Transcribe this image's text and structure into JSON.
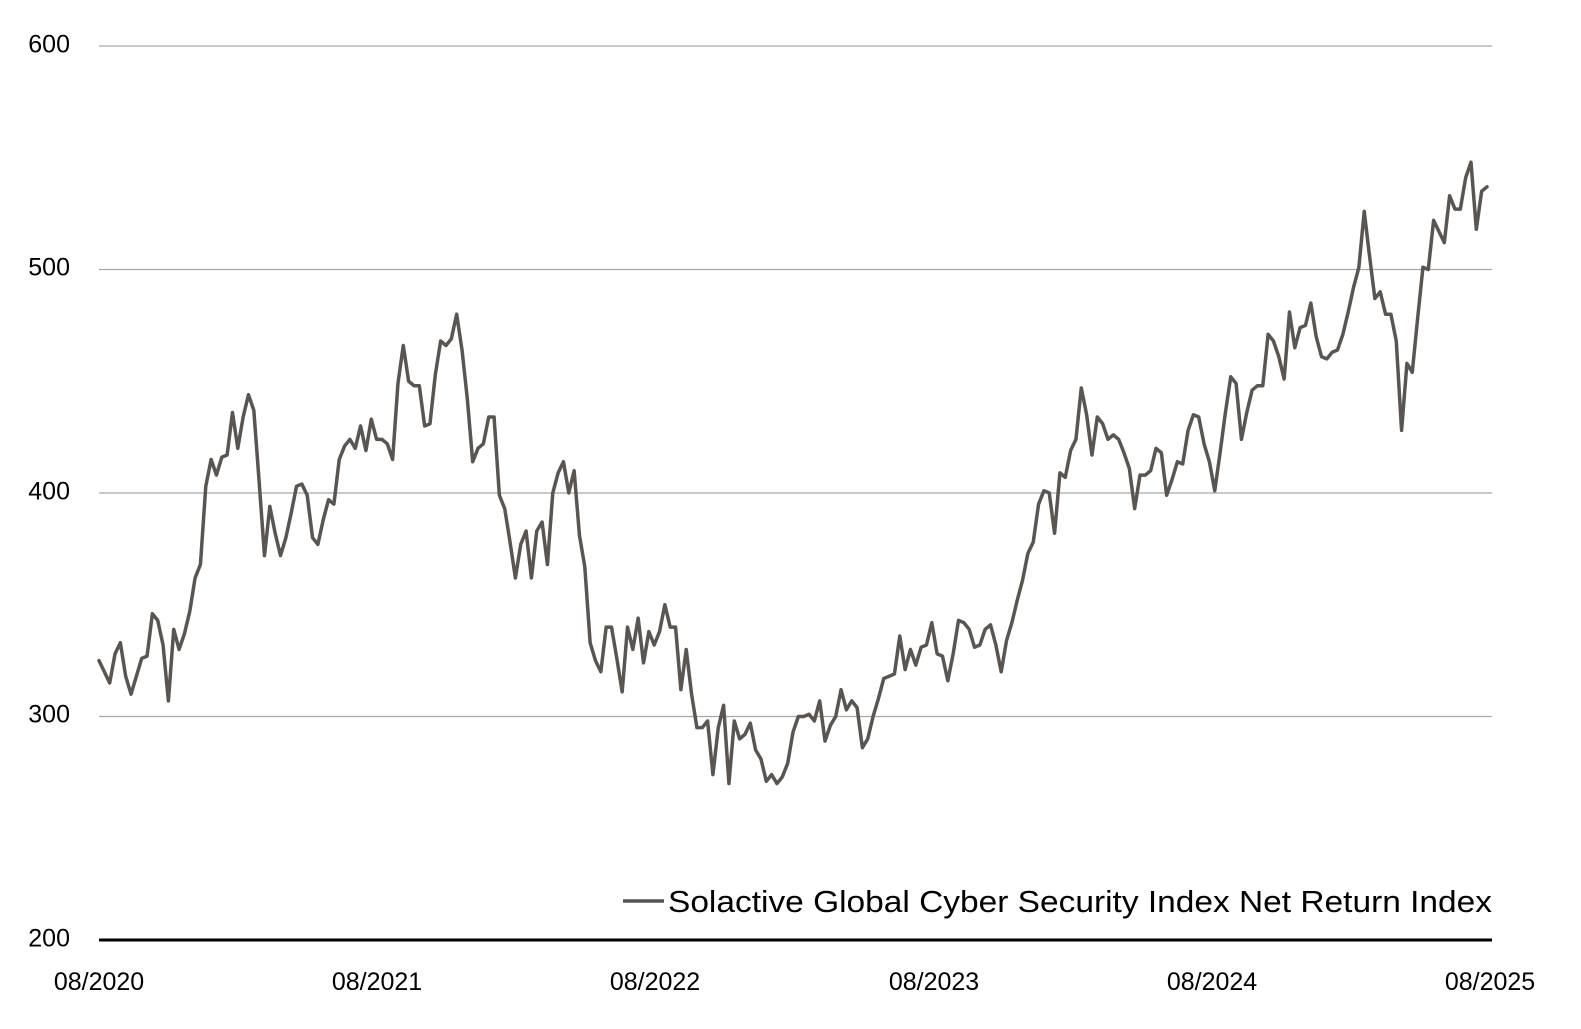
{
  "chart_data": {
    "type": "line",
    "title": "",
    "xlabel": "",
    "ylabel": "",
    "ylim": [
      200,
      600
    ],
    "y_ticks": [
      "600",
      "500",
      "400",
      "300",
      "200"
    ],
    "x_ticks": [
      "08/2020",
      "08/2021",
      "08/2022",
      "08/2023",
      "08/2024",
      "08/2025"
    ],
    "grid": "horizontal",
    "legend_position": "bottom-right",
    "x_start": "08/2020",
    "x_end": "08/2025",
    "series": [
      {
        "name": "Solactive Global Cyber Security Index Net Return Index",
        "color": "#5a5550",
        "values": [
          325,
          320,
          315,
          328,
          333,
          318,
          310,
          318,
          326,
          327,
          346,
          343,
          332,
          307,
          339,
          330,
          337,
          347,
          362,
          368,
          403,
          415,
          408,
          416,
          417,
          436,
          420,
          434,
          444,
          437,
          405,
          372,
          394,
          382,
          372,
          380,
          391,
          403,
          404,
          399,
          380,
          377,
          388,
          397,
          395,
          415,
          421,
          424,
          420,
          430,
          419,
          433,
          424,
          424,
          422,
          415,
          449,
          466,
          450,
          448,
          448,
          430,
          431,
          453,
          468,
          466,
          469,
          480,
          464,
          442,
          414,
          420,
          422,
          434,
          434,
          399,
          393,
          378,
          362,
          377,
          383,
          362,
          383,
          387,
          368,
          400,
          409,
          414,
          400,
          410,
          381,
          367,
          333,
          325,
          320,
          340,
          340,
          326,
          311,
          340,
          330,
          344,
          324,
          338,
          332,
          338,
          350,
          340,
          340,
          312,
          330,
          310,
          295,
          295,
          298,
          274,
          295,
          305,
          270,
          298,
          290,
          292,
          297,
          285,
          281,
          271,
          274,
          270,
          273,
          279,
          293,
          300,
          300,
          301,
          298,
          307,
          289,
          296,
          300,
          312,
          303,
          307,
          304,
          286,
          290,
          300,
          308,
          317,
          318,
          319,
          336,
          321,
          330,
          323,
          331,
          332,
          342,
          328,
          327,
          316,
          328,
          343,
          342,
          339,
          331,
          332,
          339,
          341,
          332,
          320,
          334,
          342,
          352,
          361,
          373,
          378,
          395,
          401,
          400,
          382,
          409,
          407,
          419,
          424,
          447,
          435,
          417,
          434,
          431,
          424,
          426,
          424,
          418,
          411,
          393,
          408,
          408,
          410,
          420,
          418,
          399,
          406,
          414,
          413,
          428,
          435,
          434,
          422,
          414,
          401,
          418,
          436,
          452,
          449,
          424,
          436,
          446,
          448,
          448,
          471,
          468,
          461,
          451,
          481,
          465,
          474,
          475,
          485,
          470,
          461,
          460,
          463,
          464,
          471,
          481,
          492,
          501,
          526,
          506,
          487,
          490,
          480,
          480,
          468,
          428,
          458,
          454,
          478,
          501,
          500,
          522,
          517,
          512,
          533,
          527,
          527,
          541,
          548,
          518,
          535,
          537
        ]
      }
    ]
  }
}
